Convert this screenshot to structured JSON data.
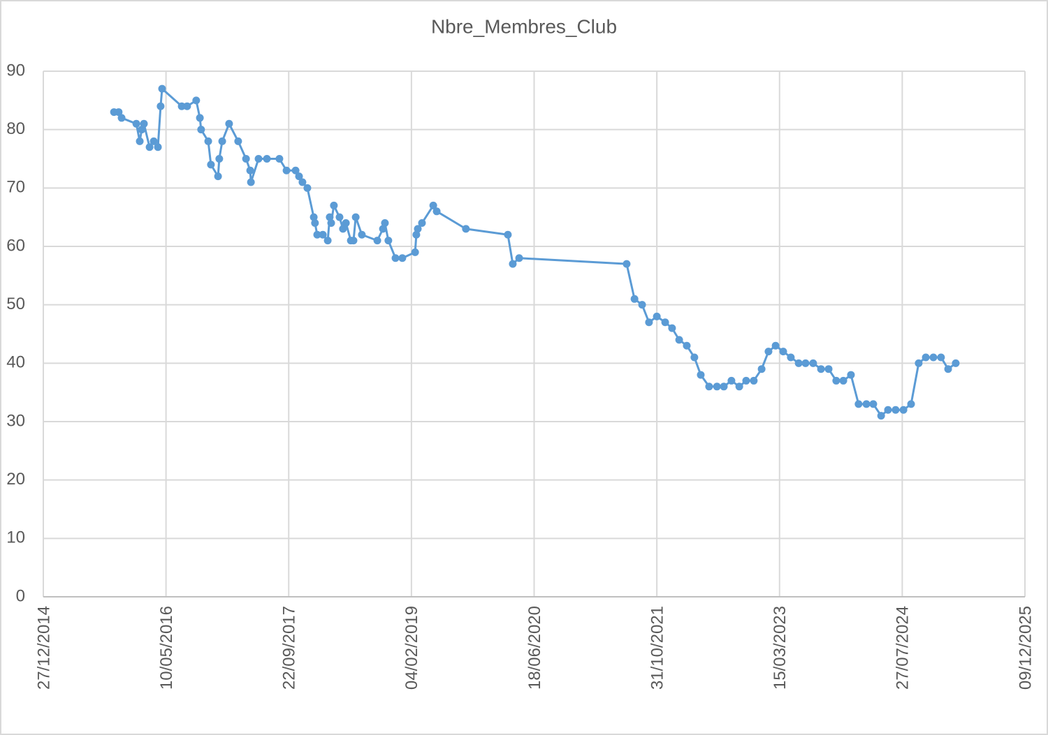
{
  "chart_data": {
    "type": "line",
    "title": "Nbre_Membres_Club",
    "color": "#5b9bd5",
    "x": [
      "11/10/2015",
      "30/10/2015",
      "11/11/2015",
      "10/01/2016",
      "24/01/2016",
      "01/02/2016",
      "10/02/2016",
      "04/03/2016",
      "21/03/2016",
      "07/04/2016",
      "18/04/2016",
      "24/04/2016",
      "13/07/2016",
      "04/08/2016",
      "10/09/2016",
      "25/09/2016",
      "30/09/2016",
      "29/10/2016",
      "09/11/2016",
      "08/12/2016",
      "13/12/2016",
      "25/12/2016",
      "22/01/2017",
      "28/02/2017",
      "01/04/2017",
      "18/04/2017",
      "21/04/2017",
      "22/05/2017",
      "25/06/2017",
      "15/08/2017",
      "13/09/2017",
      "20/10/2017",
      "03/11/2017",
      "17/11/2017",
      "07/12/2017",
      "02/01/2018",
      "07/01/2018",
      "16/01/2018",
      "08/02/2018",
      "28/02/2018",
      "08/03/2018",
      "14/03/2018",
      "25/03/2018",
      "17/04/2018",
      "01/05/2018",
      "13/05/2018",
      "02/06/2018",
      "13/06/2018",
      "22/06/2018",
      "17/07/2018",
      "18/09/2018",
      "11/10/2018",
      "19/10/2018",
      "02/11/2018",
      "01/12/2018",
      "29/12/2018",
      "19/02/2019",
      "24/02/2019",
      "02/03/2019",
      "19/03/2019",
      "04/05/2019",
      "18/05/2019",
      "14/09/2019",
      "03/03/2020",
      "23/03/2020",
      "18/04/2020",
      "30/06/2021",
      "01/08/2021",
      "01/09/2021",
      "29/09/2021",
      "31/10/2021",
      "04/12/2021",
      "01/01/2022",
      "30/01/2022",
      "02/03/2022",
      "02/04/2022",
      "28/04/2022",
      "01/06/2022",
      "03/07/2022",
      "31/07/2022",
      "31/08/2022",
      "02/10/2022",
      "30/10/2022",
      "30/11/2022",
      "01/01/2023",
      "29/01/2023",
      "27/02/2023",
      "30/03/2023",
      "30/04/2023",
      "01/06/2023",
      "29/06/2023",
      "30/07/2023",
      "31/08/2023",
      "01/10/2023",
      "01/11/2023",
      "30/11/2023",
      "31/12/2023",
      "31/01/2024",
      "03/03/2024",
      "31/03/2024",
      "02/05/2024",
      "30/05/2024",
      "30/06/2024",
      "01/08/2024",
      "01/09/2024",
      "02/10/2024",
      "31/10/2024",
      "01/12/2024",
      "01/01/2025",
      "30/01/2025",
      "02/03/2025"
    ],
    "values": [
      83,
      83,
      82,
      81,
      78,
      80,
      81,
      77,
      78,
      77,
      84,
      87,
      84,
      84,
      85,
      82,
      80,
      78,
      74,
      72,
      75,
      78,
      81,
      78,
      75,
      73,
      71,
      75,
      75,
      75,
      73,
      73,
      72,
      71,
      70,
      65,
      64,
      62,
      62,
      61,
      65,
      64,
      67,
      65,
      63,
      64,
      61,
      61,
      65,
      62,
      61,
      63,
      64,
      61,
      58,
      58,
      59,
      62,
      63,
      64,
      67,
      66,
      63,
      62,
      57,
      58,
      57,
      51,
      50,
      47,
      48,
      47,
      46,
      44,
      43,
      41,
      38,
      36,
      36,
      36,
      37,
      36,
      37,
      37,
      39,
      42,
      43,
      42,
      41,
      40,
      40,
      40,
      39,
      39,
      37,
      37,
      38,
      33,
      33,
      33,
      31,
      32,
      32,
      32,
      33,
      40,
      41,
      41,
      41,
      39,
      40
    ],
    "xlim": [
      "27/12/2014",
      "09/12/2025"
    ],
    "xticks": [
      "27/12/2014",
      "10/05/2016",
      "22/09/2017",
      "04/02/2019",
      "18/06/2020",
      "31/10/2021",
      "15/03/2023",
      "27/07/2024",
      "09/12/2025"
    ],
    "ylim": [
      0,
      90
    ],
    "yticks": [
      0,
      10,
      20,
      30,
      40,
      50,
      60,
      70,
      80,
      90
    ],
    "grid": true
  }
}
